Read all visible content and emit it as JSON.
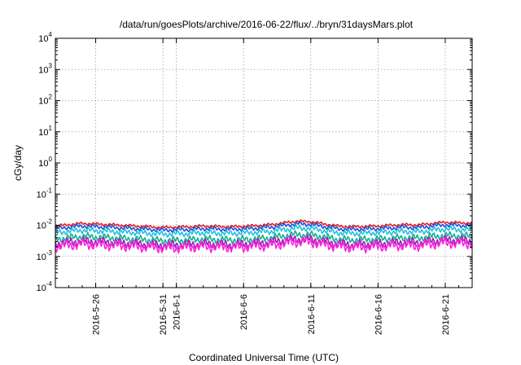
{
  "chart_data": {
    "type": "line",
    "title": "/data/run/goesPlots/archive/2016-06-22/flux/../bryn/31daysMars.plot",
    "xlabel": "Coordinated Universal Time (UTC)",
    "ylabel": "cGy/day",
    "yscale": "log",
    "ylim": [
      0.0001,
      10000
    ],
    "yticks": [
      {
        "base": "10",
        "exp": "-4"
      },
      {
        "base": "10",
        "exp": "-3"
      },
      {
        "base": "10",
        "exp": "-2"
      },
      {
        "base": "10",
        "exp": "-1"
      },
      {
        "base": "10",
        "exp": "0"
      },
      {
        "base": "10",
        "exp": "1"
      },
      {
        "base": "10",
        "exp": "2"
      },
      {
        "base": "10",
        "exp": "3"
      },
      {
        "base": "10",
        "exp": "4"
      }
    ],
    "xlim": [
      "2016-05-23",
      "2016-06-23"
    ],
    "xticks": [
      "2016-5-26",
      "2016-5-31",
      "2016-6-1",
      "2016-6-6",
      "2016-6-11",
      "2016-6-16",
      "2016-6-21"
    ],
    "grid": true,
    "x_start": "2016-05-23",
    "x_end": "2016-06-23",
    "series": [
      {
        "color": "#e02020",
        "base_values": [
          0.0095,
          0.0105,
          0.0115,
          0.011,
          0.0105,
          0.01,
          0.0095,
          0.009,
          0.0085,
          0.0088,
          0.009,
          0.0095,
          0.0092,
          0.009,
          0.0093,
          0.0098,
          0.0105,
          0.012,
          0.0135,
          0.013,
          0.011,
          0.0095,
          0.009,
          0.0092,
          0.0095,
          0.01,
          0.0105,
          0.0102,
          0.0115,
          0.0125,
          0.012,
          0.0118
        ]
      },
      {
        "color": "#1f4fe0",
        "base_values": [
          0.0078,
          0.0087,
          0.0095,
          0.009,
          0.0087,
          0.0082,
          0.0078,
          0.0074,
          0.007,
          0.0072,
          0.0074,
          0.0078,
          0.0076,
          0.0074,
          0.0077,
          0.0081,
          0.0087,
          0.0099,
          0.0111,
          0.0107,
          0.0091,
          0.0078,
          0.0074,
          0.0076,
          0.0078,
          0.0082,
          0.0087,
          0.0084,
          0.0095,
          0.0103,
          0.0099,
          0.0097
        ]
      },
      {
        "color": "#20c0e0",
        "base_values": [
          0.0058,
          0.0064,
          0.007,
          0.0067,
          0.0064,
          0.0061,
          0.0058,
          0.0055,
          0.0052,
          0.0054,
          0.0055,
          0.0058,
          0.0056,
          0.0055,
          0.0057,
          0.006,
          0.0064,
          0.0073,
          0.0082,
          0.0079,
          0.0067,
          0.0058,
          0.0055,
          0.0056,
          0.0058,
          0.0061,
          0.0064,
          0.0062,
          0.007,
          0.0076,
          0.0073,
          0.0072
        ]
      },
      {
        "color": "#10b090",
        "base_values": [
          0.0036,
          0.004,
          0.0044,
          0.0042,
          0.004,
          0.0038,
          0.0036,
          0.0034,
          0.0032,
          0.0033,
          0.0034,
          0.0036,
          0.0035,
          0.0034,
          0.0035,
          0.0037,
          0.004,
          0.0046,
          0.0051,
          0.0049,
          0.0042,
          0.0036,
          0.0034,
          0.0035,
          0.0036,
          0.0038,
          0.004,
          0.0039,
          0.0044,
          0.0047,
          0.0046,
          0.0045
        ]
      },
      {
        "color": "#9a20b0",
        "base_values": [
          0.0026,
          0.0029,
          0.0031,
          0.003,
          0.0029,
          0.0027,
          0.0026,
          0.0024,
          0.0023,
          0.0024,
          0.0024,
          0.0026,
          0.0025,
          0.0024,
          0.0025,
          0.0027,
          0.0029,
          0.0033,
          0.0036,
          0.0035,
          0.003,
          0.0026,
          0.0024,
          0.0025,
          0.0026,
          0.0027,
          0.0029,
          0.0028,
          0.0031,
          0.0034,
          0.0033,
          0.0032
        ]
      },
      {
        "color": "#ff20e0",
        "base_values": [
          0.0021,
          0.0023,
          0.0025,
          0.0024,
          0.0023,
          0.0022,
          0.0021,
          0.002,
          0.0019,
          0.0019,
          0.002,
          0.0021,
          0.002,
          0.002,
          0.002,
          0.0022,
          0.0023,
          0.0026,
          0.003,
          0.0029,
          0.0024,
          0.0021,
          0.002,
          0.002,
          0.0021,
          0.0022,
          0.0023,
          0.0022,
          0.0025,
          0.0028,
          0.0026,
          0.0026
        ]
      }
    ]
  }
}
